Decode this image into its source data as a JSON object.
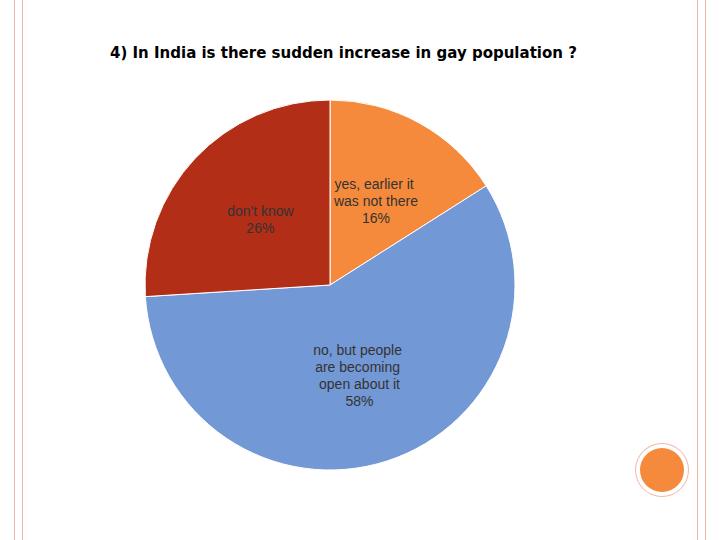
{
  "chart_data": {
    "type": "pie",
    "title": "4) In India is there sudden increase in gay population ?",
    "categories": [
      "yes, earlier it was not there",
      "no, but people are becoming open about it",
      "don't know"
    ],
    "values": [
      16,
      58,
      26
    ],
    "value_labels": [
      "16%",
      "58%",
      "26%"
    ],
    "colors": [
      "#f58a3c",
      "#7398d6",
      "#b22e17"
    ],
    "data_labels": true
  }
}
